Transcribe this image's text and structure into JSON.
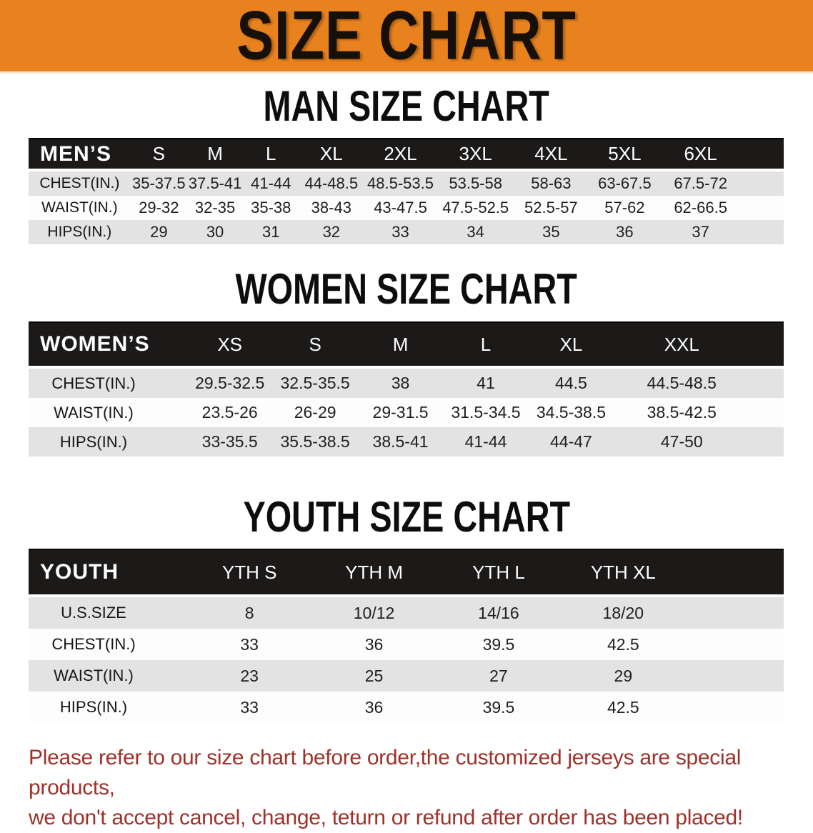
{
  "banner": {
    "title": "SIZE CHART",
    "bg_color": "#E8821E",
    "text_color": "#161008"
  },
  "colors": {
    "banner_bg": "#E8821E",
    "header_band": "#1C1919",
    "shaded_row": "#E3E3E3",
    "footer_text": "#A0312A"
  },
  "sections": [
    {
      "heading": "MAN SIZE CHART",
      "table": {
        "header": {
          "label": "MEN’S",
          "columns": [
            "S",
            "M",
            "L",
            "XL",
            "2XL",
            "3XL",
            "4XL",
            "5XL",
            "6XL"
          ]
        },
        "rows": [
          {
            "label": "CHEST(IN.)",
            "values": [
              "35-37.5",
              "37.5-41",
              "41-44",
              "44-48.5",
              "48.5-53.5",
              "53.5-58",
              "58-63",
              "63-67.5",
              "67.5-72"
            ]
          },
          {
            "label": "WAIST(IN.)",
            "values": [
              "29-32",
              "32-35",
              "35-38",
              "38-43",
              "43-47.5",
              "47.5-52.5",
              "52.5-57",
              "57-62",
              "62-66.5"
            ]
          },
          {
            "label": "HIPS(IN.)",
            "values": [
              "29",
              "30",
              "31",
              "32",
              "33",
              "34",
              "35",
              "36",
              "37"
            ]
          }
        ]
      }
    },
    {
      "heading": "WOMEN SIZE CHART",
      "table": {
        "header": {
          "label": "WOMEN’S",
          "columns": [
            "XS",
            "S",
            "M",
            "L",
            "XL",
            "XXL"
          ]
        },
        "rows": [
          {
            "label": "CHEST(IN.)",
            "values": [
              "29.5-32.5",
              "32.5-35.5",
              "38",
              "41",
              "44.5",
              "44.5-48.5"
            ]
          },
          {
            "label": "WAIST(IN.)",
            "values": [
              "23.5-26",
              "26-29",
              "29-31.5",
              "31.5-34.5",
              "34.5-38.5",
              "38.5-42.5"
            ]
          },
          {
            "label": "HIPS(IN.)",
            "values": [
              "33-35.5",
              "35.5-38.5",
              "38.5-41",
              "41-44",
              "44-47",
              "47-50"
            ]
          }
        ]
      }
    },
    {
      "heading": "YOUTH SIZE CHART",
      "table": {
        "header": {
          "label": "YOUTH",
          "columns": [
            "YTH S",
            "YTH M",
            "YTH L",
            "YTH XL"
          ]
        },
        "rows": [
          {
            "label": "U.S.SIZE",
            "values": [
              "8",
              "10/12",
              "14/16",
              "18/20"
            ]
          },
          {
            "label": "CHEST(IN.)",
            "values": [
              "33",
              "36",
              "39.5",
              "42.5"
            ]
          },
          {
            "label": "WAIST(IN.)",
            "values": [
              "23",
              "25",
              "27",
              "29"
            ]
          },
          {
            "label": "HIPS(IN.)",
            "values": [
              "33",
              "36",
              "39.5",
              "42.5"
            ]
          }
        ]
      }
    }
  ],
  "footer": {
    "line1": "Please refer to our size chart before order,the customized jerseys are special products,",
    "line2": "we don't accept cancel, change, teturn or refund after order has been placed!"
  }
}
